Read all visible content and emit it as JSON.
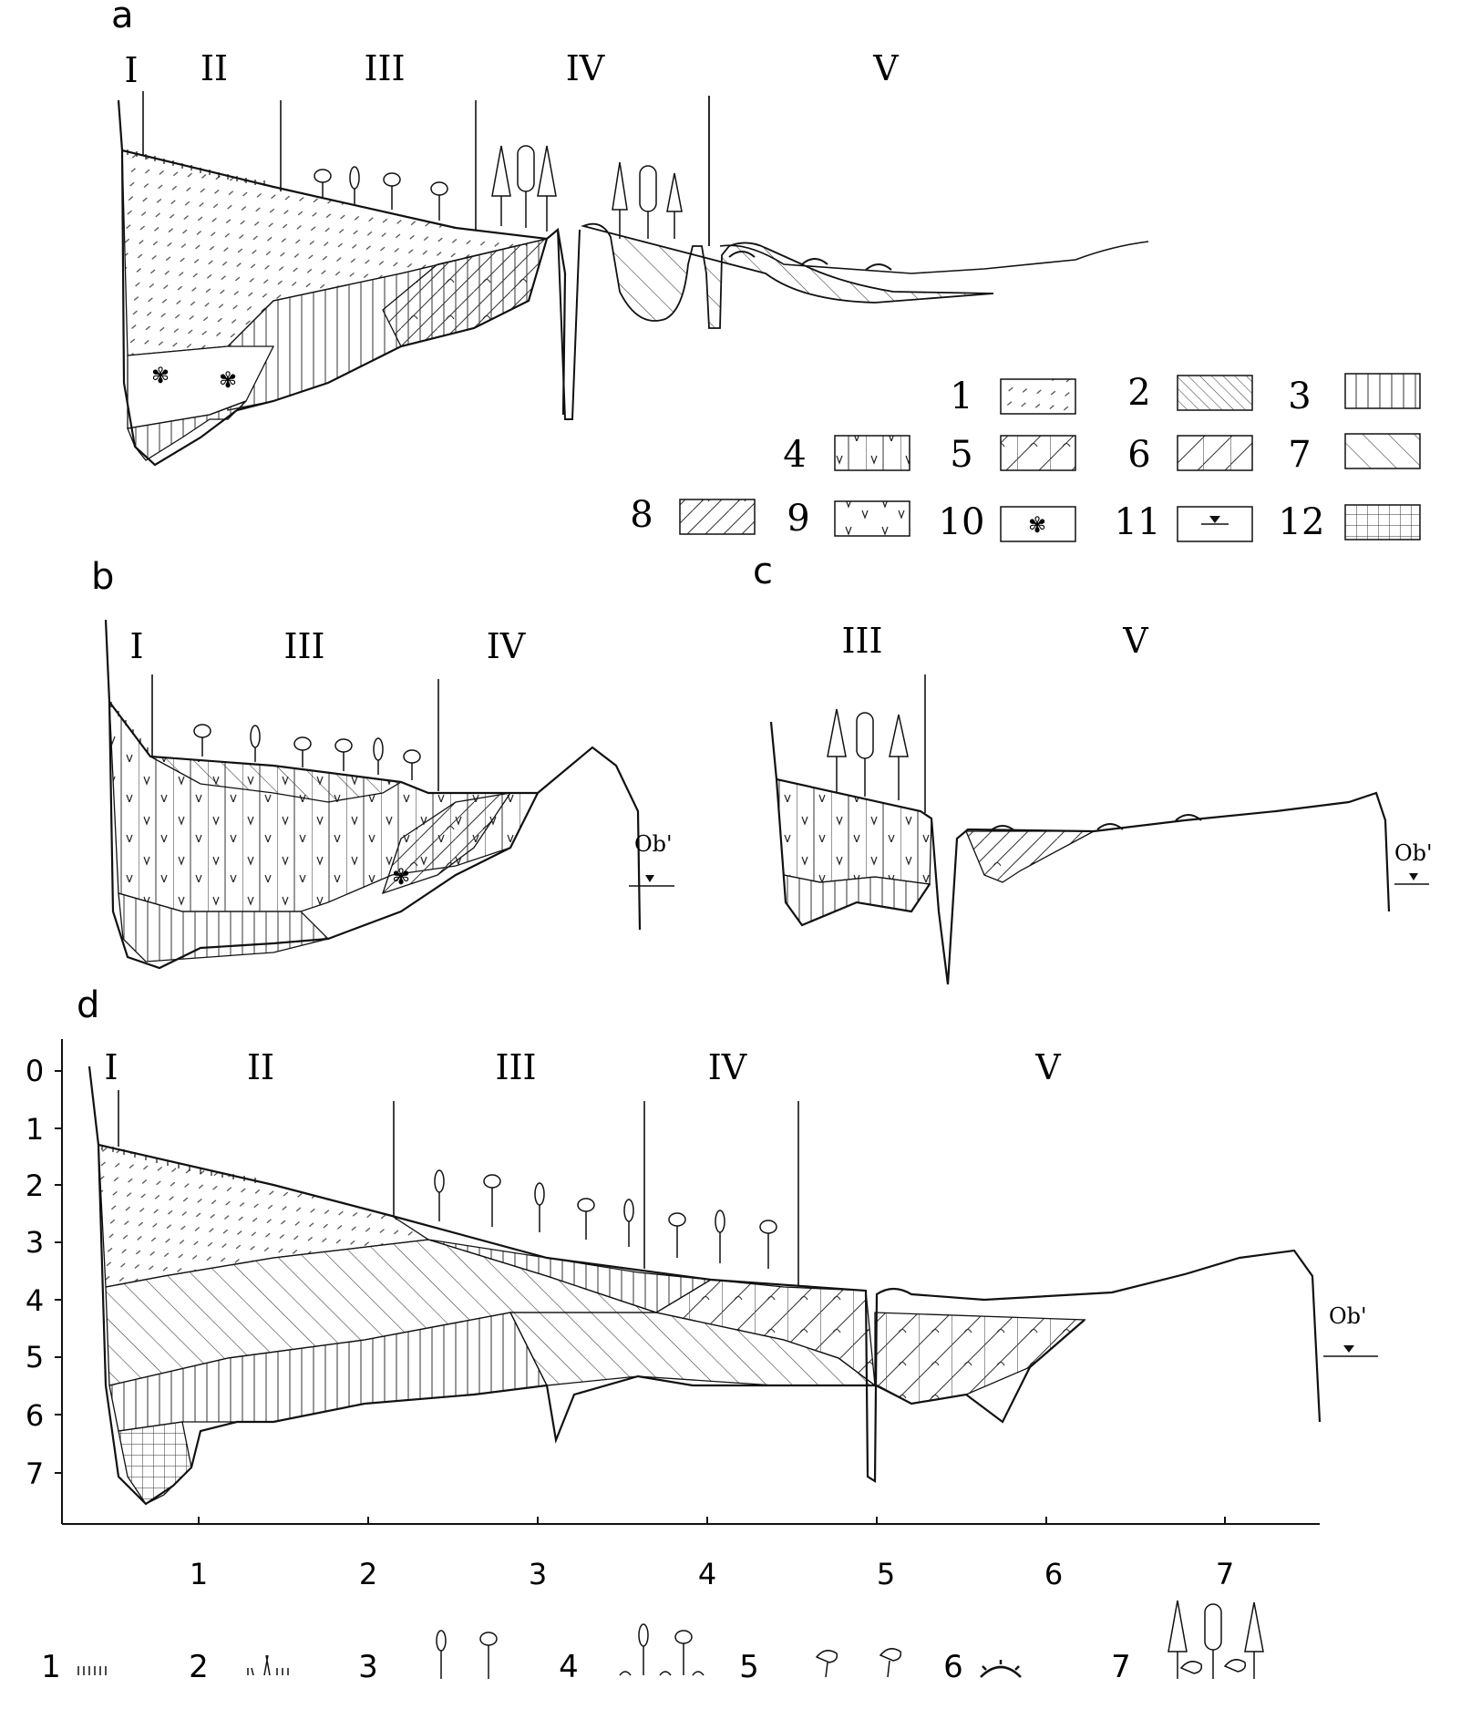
{
  "panels": {
    "a": {
      "label": "a",
      "zones": [
        "I",
        "II",
        "III",
        "IV",
        "V"
      ]
    },
    "b": {
      "label": "b",
      "zones": [
        "I",
        "III",
        "IV"
      ],
      "water_label": "Ob'"
    },
    "c": {
      "label": "c",
      "zones": [
        "III",
        "V"
      ],
      "water_label": "Ob'"
    },
    "d": {
      "label": "d",
      "zones": [
        "I",
        "II",
        "III",
        "IV",
        "V"
      ],
      "water_label": "Ob'",
      "y_ticks": [
        "0",
        "1",
        "2",
        "3",
        "4",
        "5",
        "6",
        "7"
      ],
      "x_ticks": [
        "1",
        "2",
        "3",
        "4",
        "5",
        "6",
        "7"
      ]
    }
  },
  "legend_sediments": [
    {
      "num": "1",
      "pattern": "dashes"
    },
    {
      "num": "2",
      "pattern": "dense-hatch"
    },
    {
      "num": "3",
      "pattern": "vertical"
    },
    {
      "num": "4",
      "pattern": "vertical-v"
    },
    {
      "num": "5",
      "pattern": "hatch-arc-vertical"
    },
    {
      "num": "6",
      "pattern": "hatch-vertical"
    },
    {
      "num": "7",
      "pattern": "hatch"
    },
    {
      "num": "8",
      "pattern": "hatch-arc"
    },
    {
      "num": "9",
      "pattern": "v-marks"
    },
    {
      "num": "10",
      "pattern": "clover"
    },
    {
      "num": "11",
      "pattern": "water-level"
    },
    {
      "num": "12",
      "pattern": "grid"
    }
  ],
  "legend_vegetation": [
    {
      "num": "1",
      "icon": "short-grass-icon"
    },
    {
      "num": "2",
      "icon": "sedge-grass-icon"
    },
    {
      "num": "3",
      "icon": "young-trees-icon"
    },
    {
      "num": "4",
      "icon": "trees-with-shrubs-icon"
    },
    {
      "num": "5",
      "icon": "shrubs-icon"
    },
    {
      "num": "6",
      "icon": "hummock-icon"
    },
    {
      "num": "7",
      "icon": "mature-forest-icon"
    }
  ]
}
